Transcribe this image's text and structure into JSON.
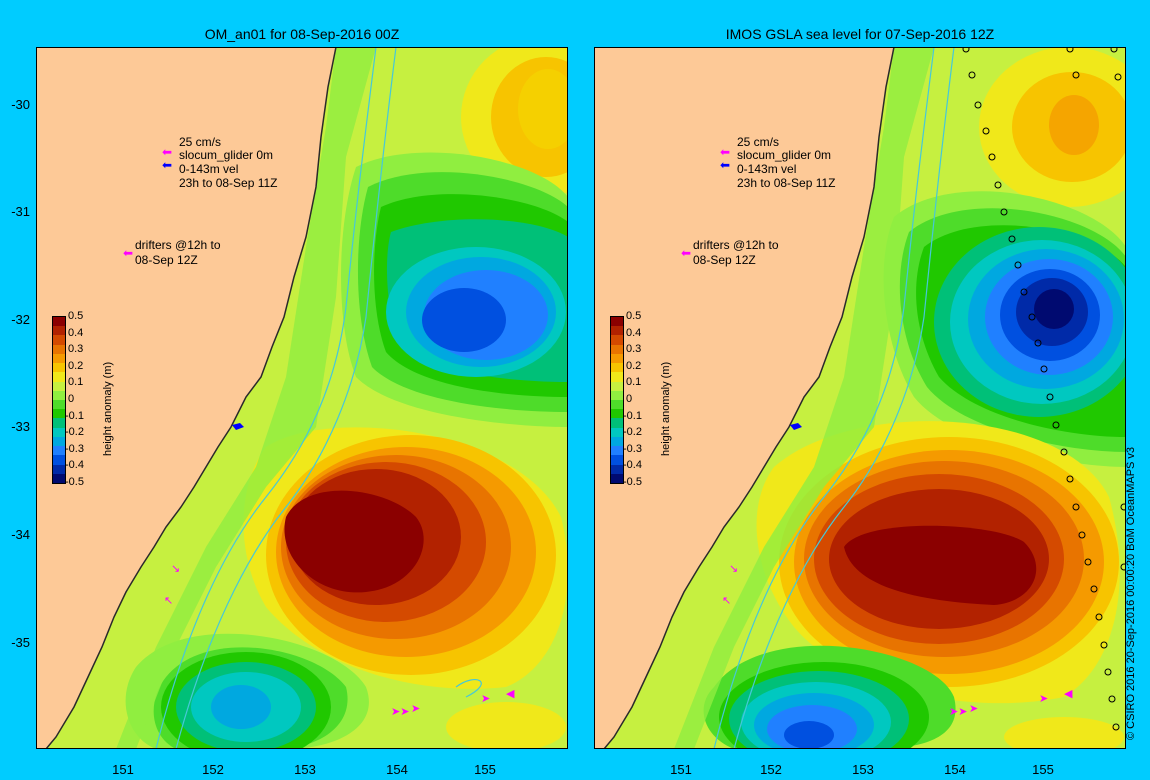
{
  "panels": [
    {
      "title": "OM_an01 for 08-Sep-2016 00Z"
    },
    {
      "title": "IMOS GSLA sea level  for 07-Sep-2016 12Z"
    }
  ],
  "y_ticks": [
    "-30",
    "-31",
    "-32",
    "-33",
    "-34",
    "-35"
  ],
  "x_ticks": [
    "151",
    "152",
    "153",
    "154",
    "155"
  ],
  "legend": {
    "vel_scale": "25 cm/s",
    "glider_label": "slocum_glider 0m",
    "vel_depth": "0-143m vel",
    "time_range": "23h to 08-Sep 11Z",
    "drifters_line1": "drifters @12h to",
    "drifters_line2": "08-Sep 12Z"
  },
  "colorbar": {
    "label": "height anomaly (m)",
    "ticks": [
      "0.5",
      "0.4",
      "0.3",
      "0.2",
      "0.1",
      "0",
      "-0.1",
      "-0.2",
      "-0.3",
      "-0.4",
      "-0.5"
    ],
    "colors": [
      "#8b0000",
      "#b22200",
      "#d44a00",
      "#e87400",
      "#f59a00",
      "#f7c400",
      "#f0e81a",
      "#c6f040",
      "#90ee40",
      "#4edc2a",
      "#20c800",
      "#00c078",
      "#00c8c0",
      "#00a8e0",
      "#2080ff",
      "#0050e0",
      "#002aa8",
      "#000a70"
    ]
  },
  "colors": {
    "land": "#fdc997",
    "background": "#00ccff",
    "coast": "#2a2a2a",
    "isobath": "#46c8d8",
    "glider": "#ff00ff",
    "glider_mean": "#0000ff"
  },
  "copyright": "© CSIRO 2016   20-Sep-2016 00:00:20 BoM OceanMAPS v3"
}
